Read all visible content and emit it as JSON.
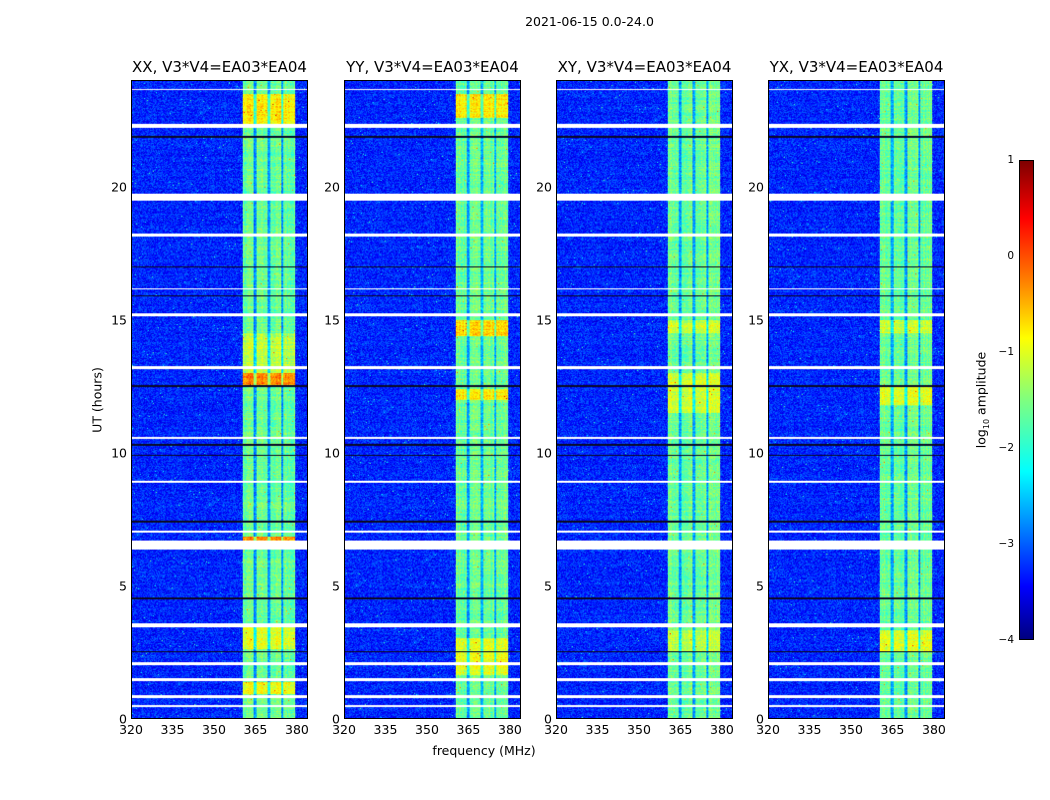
{
  "chart_data": {
    "type": "heatmap",
    "title": "2021-06-15 0.0-24.0",
    "xlabel": "frequency (MHz)",
    "ylabel": "UT (hours)",
    "xlim": [
      320,
      384
    ],
    "ylim": [
      0,
      24
    ],
    "xticks": [
      "320",
      "335",
      "350",
      "365",
      "380"
    ],
    "xtick_values": [
      320,
      335,
      350,
      365,
      380
    ],
    "yticks": [
      "0",
      "5",
      "10",
      "15",
      "20"
    ],
    "ytick_values": [
      0,
      5,
      10,
      15,
      20
    ],
    "colorbar": {
      "label_prefix": "log",
      "label_sub": "10",
      "label_suffix": " amplitude",
      "range": [
        -4,
        1
      ],
      "ticks": [
        "1",
        "0",
        "−1",
        "−2",
        "−3",
        "−4"
      ],
      "tick_values": [
        1,
        0,
        -1,
        -2,
        -3,
        -4
      ],
      "colormap": "jet"
    },
    "background_level": -3.2,
    "band_mhz": [
      360.5,
      379.5
    ],
    "subband_edges_mhz": [
      365,
      370,
      375
    ],
    "band_level": -1.6,
    "flagged_hours": [
      [
        0.4,
        0.5
      ],
      [
        0.75,
        0.85
      ],
      [
        1.4,
        1.5
      ],
      [
        2.0,
        2.1
      ],
      [
        3.4,
        3.55
      ],
      [
        6.35,
        6.7
      ],
      [
        7.0,
        7.05
      ],
      [
        8.85,
        8.95
      ],
      [
        10.5,
        10.6
      ],
      [
        13.15,
        13.25
      ],
      [
        15.15,
        15.25
      ],
      [
        16.15,
        16.2
      ],
      [
        18.15,
        18.25
      ],
      [
        19.5,
        19.75
      ],
      [
        22.25,
        22.4
      ],
      [
        23.65,
        23.7
      ]
    ],
    "dark_hours": [
      2.5,
      4.5,
      7.4,
      9.9,
      10.3,
      12.5,
      15.9,
      17.0,
      21.9
    ],
    "panels": [
      {
        "title": "XX, V3*V4=EA03*EA04",
        "bright": [
          [
            12.5,
            13.0,
            -0.3
          ],
          [
            6.7,
            6.85,
            -0.3
          ],
          [
            22.4,
            23.5,
            -0.8
          ],
          [
            0.9,
            1.35,
            -0.9
          ],
          [
            2.6,
            3.4,
            -1.0
          ],
          [
            13.0,
            14.5,
            -1.2
          ]
        ]
      },
      {
        "title": "YY, V3*V4=EA03*EA04",
        "bright": [
          [
            22.6,
            23.5,
            -0.8
          ],
          [
            14.4,
            15.0,
            -0.7
          ],
          [
            12.0,
            12.4,
            -0.8
          ],
          [
            1.6,
            3.0,
            -1.0
          ]
        ]
      },
      {
        "title": "XY, V3*V4=EA03*EA04",
        "bright": [
          [
            11.5,
            13.0,
            -1.1
          ],
          [
            14.5,
            15.0,
            -1.1
          ],
          [
            2.5,
            3.3,
            -1.2
          ]
        ]
      },
      {
        "title": "YX, V3*V4=EA03*EA04",
        "bright": [
          [
            11.8,
            12.5,
            -1.0
          ],
          [
            14.5,
            15.0,
            -1.1
          ],
          [
            2.5,
            3.3,
            -1.0
          ]
        ]
      }
    ]
  }
}
